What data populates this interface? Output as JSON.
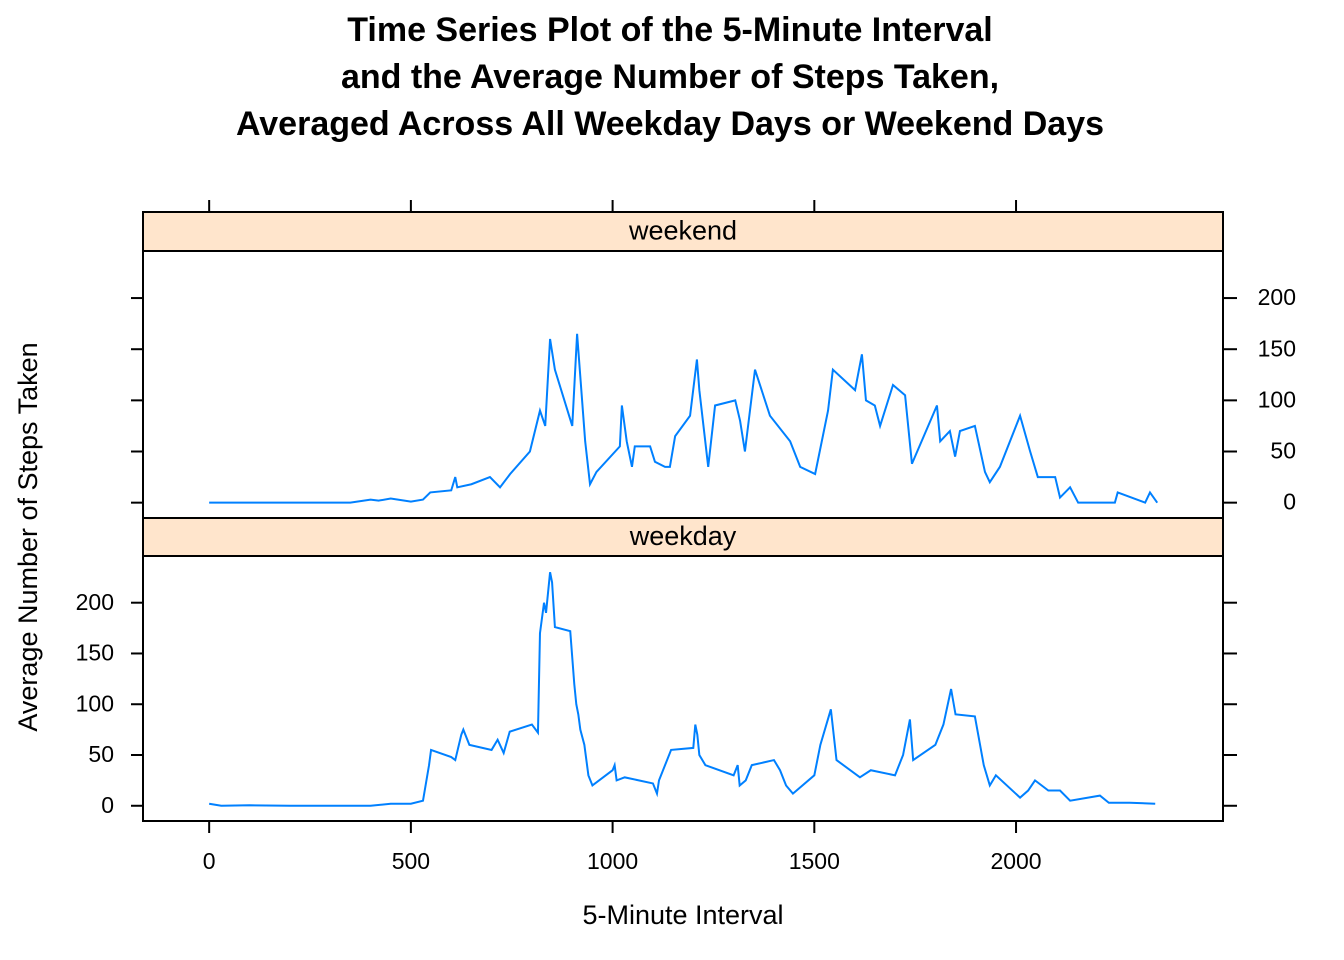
{
  "chart_data": {
    "type": "line",
    "title": [
      "Time Series Plot of the 5-Minute Interval",
      "and the Average Number of Steps Taken,",
      "Averaged Across All Weekday Days or Weekend Days"
    ],
    "xlabel": "5-Minute Interval",
    "ylabel": "Average Number of Steps Taken",
    "xlim": [
      -164,
      2513
    ],
    "xticks": [
      0,
      500,
      1000,
      1500,
      2000
    ],
    "ylim": [
      -15,
      246
    ],
    "yticks": [
      0,
      50,
      100,
      150,
      200
    ],
    "strip_color": "#ffe5cc",
    "series": [
      {
        "name": "weekend",
        "color": "#0080ff",
        "x": [
          0,
          100,
          200,
          300,
          350,
          400,
          420,
          450,
          500,
          530,
          548,
          600,
          610,
          615,
          650,
          696,
          721,
          746,
          795,
          820,
          833,
          845,
          857,
          900,
          912,
          932,
          944,
          960,
          1018,
          1023,
          1035,
          1048,
          1055,
          1093,
          1105,
          1130,
          1142,
          1155,
          1192,
          1209,
          1215,
          1237,
          1254,
          1304,
          1316,
          1328,
          1353,
          1390,
          1440,
          1465,
          1502,
          1534,
          1546,
          1601,
          1618,
          1628,
          1650,
          1663,
          1695,
          1725,
          1742,
          1804,
          1812,
          1836,
          1849,
          1861,
          1898,
          1923,
          1935,
          1960,
          2010,
          2035,
          2054,
          2097,
          2109,
          2134,
          2154,
          2245,
          2252,
          2320,
          2332,
          2350
        ],
        "values": [
          0,
          0,
          0,
          0,
          0,
          3,
          2,
          4,
          1,
          3,
          10,
          12,
          25,
          15,
          18,
          25,
          15,
          28,
          50,
          90,
          75,
          160,
          130,
          75,
          165,
          60,
          18,
          30,
          55,
          95,
          60,
          35,
          55,
          55,
          40,
          35,
          35,
          65,
          85,
          140,
          110,
          35,
          95,
          100,
          80,
          50,
          130,
          85,
          60,
          35,
          28,
          90,
          130,
          110,
          145,
          100,
          95,
          75,
          115,
          105,
          38,
          95,
          60,
          70,
          45,
          70,
          75,
          30,
          20,
          35,
          85,
          50,
          25,
          25,
          5,
          15,
          0,
          0,
          10,
          0,
          10,
          0
        ]
      },
      {
        "name": "weekday",
        "color": "#0080ff",
        "x": [
          0,
          30,
          100,
          200,
          300,
          400,
          450,
          500,
          530,
          545,
          550,
          600,
          610,
          625,
          630,
          645,
          700,
          715,
          730,
          745,
          800,
          815,
          820,
          830,
          835,
          845,
          850,
          857,
          895,
          905,
          910,
          915,
          920,
          930,
          940,
          950,
          1000,
          1005,
          1010,
          1030,
          1100,
          1110,
          1115,
          1130,
          1145,
          1200,
          1205,
          1210,
          1215,
          1230,
          1300,
          1310,
          1315,
          1330,
          1345,
          1400,
          1415,
          1430,
          1447,
          1500,
          1515,
          1541,
          1555,
          1613,
          1640,
          1700,
          1720,
          1737,
          1745,
          1800,
          1820,
          1839,
          1850,
          1898,
          1920,
          1935,
          1950,
          2010,
          2030,
          2047,
          2080,
          2109,
          2134,
          2208,
          2230,
          2282,
          2345
        ],
        "values": [
          2,
          0,
          0.5,
          0,
          0,
          0,
          2,
          2,
          5,
          40,
          55,
          48,
          45,
          70,
          75,
          60,
          55,
          65,
          52,
          73,
          80,
          72,
          170,
          200,
          190,
          230,
          220,
          176,
          172,
          120,
          100,
          90,
          75,
          60,
          30,
          20,
          35,
          40,
          25,
          28,
          22,
          12,
          25,
          40,
          55,
          57,
          80,
          70,
          50,
          40,
          30,
          40,
          20,
          25,
          40,
          45,
          35,
          20,
          12,
          30,
          60,
          95,
          45,
          28,
          35,
          30,
          50,
          85,
          45,
          60,
          80,
          115,
          90,
          88,
          40,
          20,
          30,
          8,
          15,
          25,
          15,
          15,
          5,
          10,
          3,
          3,
          2
        ]
      }
    ]
  }
}
